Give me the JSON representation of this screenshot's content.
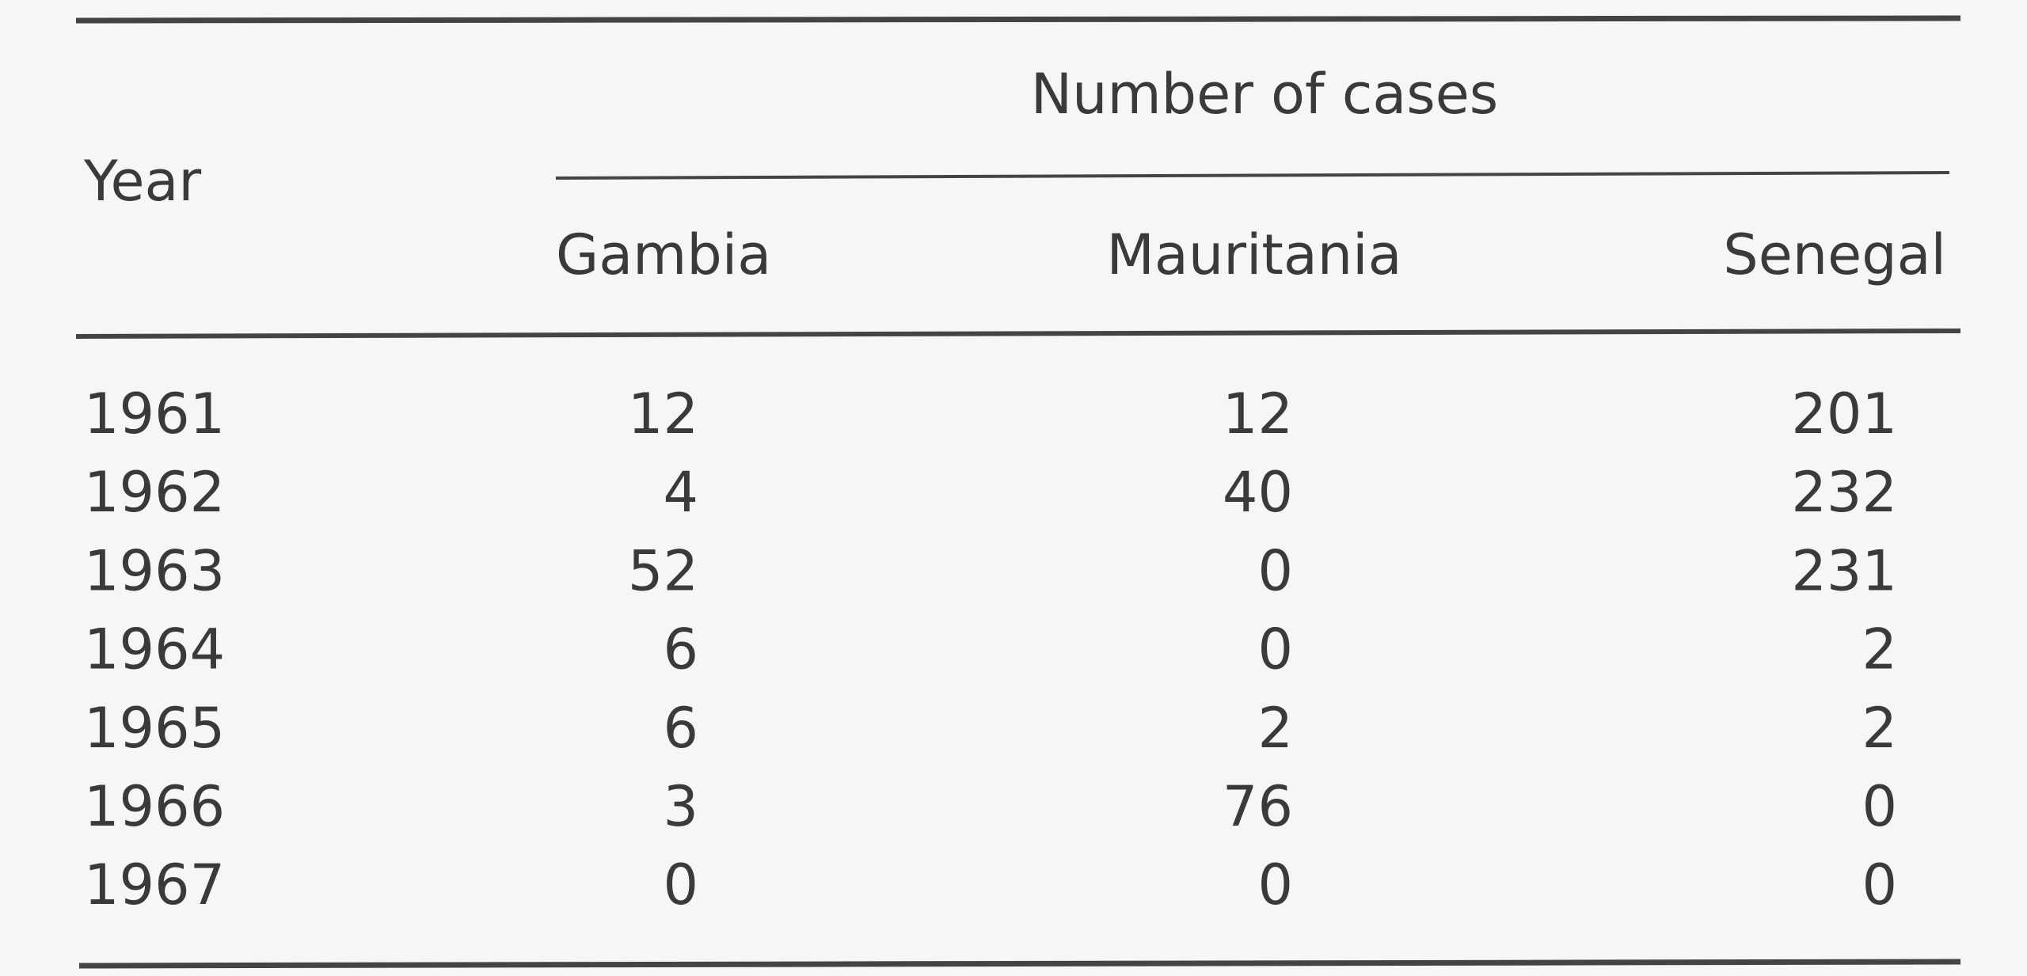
{
  "table": {
    "header": {
      "year": "Year",
      "group": "Number of cases",
      "columns": [
        "Gambia",
        "Mauritania",
        "Senegal"
      ]
    },
    "rows": [
      [
        "1961",
        12,
        12,
        201
      ],
      [
        "1962",
        4,
        40,
        232
      ],
      [
        "1963",
        52,
        0,
        231
      ],
      [
        "1964",
        6,
        0,
        2
      ],
      [
        "1965",
        6,
        2,
        2
      ],
      [
        "1966",
        3,
        76,
        0
      ],
      [
        "1967",
        0,
        0,
        0
      ]
    ]
  }
}
